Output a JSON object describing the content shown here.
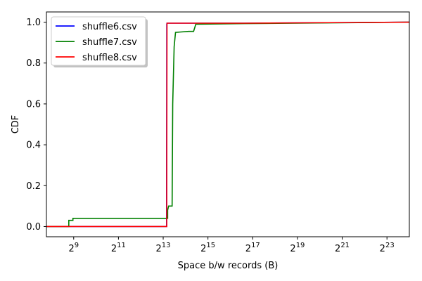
{
  "chart_data": {
    "type": "line",
    "xscale": "log2",
    "xlabel": "Space b/w records (B)",
    "ylabel": "CDF",
    "xlim": [
      220,
      16777216
    ],
    "ylim": [
      -0.05,
      1.05
    ],
    "x_ticks": [
      {
        "value": 512,
        "base": "2",
        "exp": "9"
      },
      {
        "value": 2048,
        "base": "2",
        "exp": "11"
      },
      {
        "value": 8192,
        "base": "2",
        "exp": "13"
      },
      {
        "value": 32768,
        "base": "2",
        "exp": "15"
      },
      {
        "value": 131072,
        "base": "2",
        "exp": "17"
      },
      {
        "value": 524288,
        "base": "2",
        "exp": "19"
      },
      {
        "value": 2097152,
        "base": "2",
        "exp": "21"
      },
      {
        "value": 8388608,
        "base": "2",
        "exp": "23"
      }
    ],
    "y_ticks": [
      "0.0",
      "0.2",
      "0.4",
      "0.6",
      "0.8",
      "1.0"
    ],
    "legend_position": "top-left",
    "series": [
      {
        "name": "shuffle6.csv",
        "color": "#0000ff",
        "points": [
          [
            220,
            0.0
          ],
          [
            9100,
            0.0
          ],
          [
            9100,
            0.18
          ],
          [
            9150,
            0.99
          ],
          [
            9200,
            0.995
          ],
          [
            100000,
            0.995
          ],
          [
            16777216,
            1.0
          ]
        ]
      },
      {
        "name": "shuffle7.csv",
        "color": "#008000",
        "points": [
          [
            220,
            0.0
          ],
          [
            440,
            0.0
          ],
          [
            440,
            0.03
          ],
          [
            500,
            0.03
          ],
          [
            500,
            0.04
          ],
          [
            9400,
            0.04
          ],
          [
            9400,
            0.08
          ],
          [
            9700,
            0.1
          ],
          [
            10800,
            0.1
          ],
          [
            11000,
            0.6
          ],
          [
            11500,
            0.88
          ],
          [
            12000,
            0.95
          ],
          [
            18000,
            0.955
          ],
          [
            21000,
            0.955
          ],
          [
            22500,
            0.99
          ],
          [
            100000,
            0.993
          ],
          [
            16777216,
            1.0
          ]
        ]
      },
      {
        "name": "shuffle8.csv",
        "color": "#ff0000",
        "points": [
          [
            220,
            0.0
          ],
          [
            9150,
            0.0
          ],
          [
            9150,
            0.2
          ],
          [
            9220,
            0.995
          ],
          [
            100000,
            0.995
          ],
          [
            16777216,
            1.0
          ]
        ]
      }
    ]
  }
}
